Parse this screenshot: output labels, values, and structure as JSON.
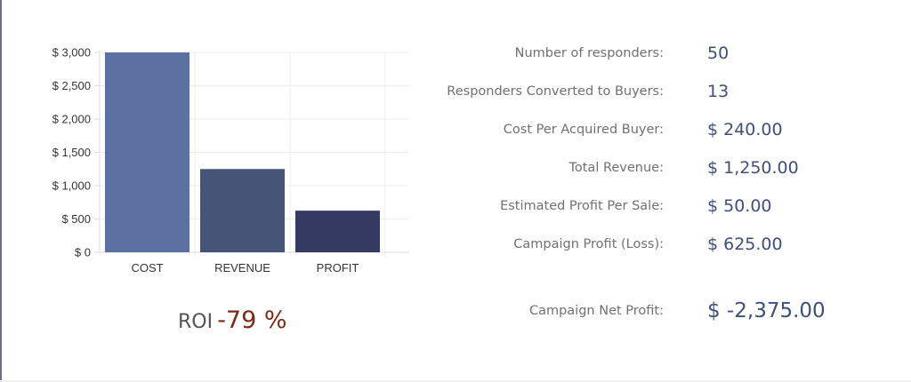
{
  "chart_data": {
    "type": "bar",
    "categories": [
      "COST",
      "REVENUE",
      "PROFIT"
    ],
    "values": [
      3000,
      1250,
      625
    ],
    "colors": [
      "#5c71a1",
      "#465577",
      "#343a62"
    ],
    "ylim": [
      0,
      3000
    ],
    "y_ticks": [
      0,
      500,
      1000,
      1500,
      2000,
      2500,
      3000
    ],
    "y_tick_labels": [
      "$ 0",
      "$ 500",
      "$ 1,000",
      "$ 1,500",
      "$ 2,000",
      "$ 2,500",
      "$ 3,000"
    ],
    "grid": true,
    "title": "",
    "xlabel": "",
    "ylabel": ""
  },
  "roi": {
    "label": "ROI",
    "value": "-79 %"
  },
  "stats": [
    {
      "label": "Number of responders:",
      "value": "50"
    },
    {
      "label": "Responders Converted to Buyers:",
      "value": "13"
    },
    {
      "label": "Cost Per Acquired Buyer:",
      "value": "$ 240.00"
    },
    {
      "label": "Total Revenue:",
      "value": "$ 1,250.00"
    },
    {
      "label": "Estimated Profit Per Sale:",
      "value": "$ 50.00"
    },
    {
      "label": "Campaign Profit (Loss):",
      "value": "$ 625.00"
    }
  ],
  "net_profit": {
    "label": "Campaign Net Profit:",
    "value": "$ -2,375.00"
  }
}
